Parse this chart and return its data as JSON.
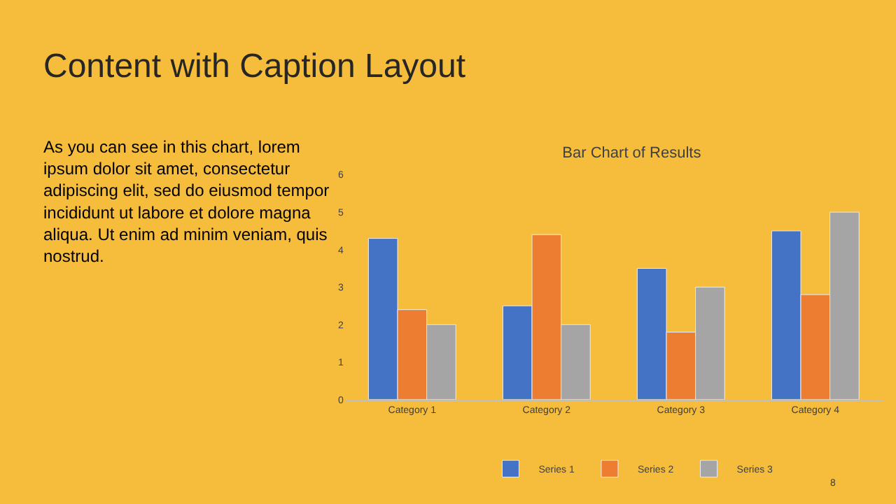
{
  "chart_data": {
    "type": "bar",
    "title": "Bar Chart of Results",
    "categories": [
      "Category 1",
      "Category 2",
      "Category 3",
      "Category 4"
    ],
    "series": [
      {
        "name": "Series 1",
        "color": "#4472c4",
        "values": [
          4.3,
          2.5,
          3.5,
          4.5
        ]
      },
      {
        "name": "Series 2",
        "color": "#ed7d31",
        "values": [
          2.4,
          4.4,
          1.8,
          2.8
        ]
      },
      {
        "name": "Series 3",
        "color": "#a5a5a5",
        "values": [
          2,
          2,
          3,
          5
        ]
      }
    ],
    "ylim": [
      0,
      6
    ],
    "yticks": [
      0,
      1,
      2,
      3,
      4,
      5,
      6
    ],
    "grid": false,
    "legend": "bottom",
    "annotations": [
      "Content with Caption Layout",
      "As you can see in this chart, lorem ipsum dolor sit amet, consectetur adipiscing elit, sed do eiusmod tempor incididunt ut labore et dolore magna aliqua. Ut enim ad minim veniam, quis nostrud.",
      "8"
    ]
  }
}
